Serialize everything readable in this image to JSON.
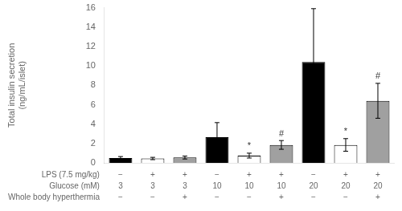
{
  "chart_data": {
    "type": "bar",
    "ylabel": "Total insulin secretion\n(ng/mL/islet)",
    "categories": [
      [
        "−",
        "3",
        "−"
      ],
      [
        "+",
        "3",
        "−"
      ],
      [
        "+",
        "3",
        "+"
      ],
      [
        "−",
        "10",
        "−"
      ],
      [
        "+",
        "10",
        "−"
      ],
      [
        "+",
        "10",
        "+"
      ],
      [
        "−",
        "20",
        "−"
      ],
      [
        "+",
        "20",
        "−"
      ],
      [
        "+",
        "20",
        "+"
      ]
    ],
    "category_rows": [
      "LPS (7.5 mg/kg)",
      "Glucose (mM)",
      "Whole body hyperthermia"
    ],
    "values": [
      0.5,
      0.45,
      0.55,
      2.65,
      0.75,
      1.85,
      10.4,
      1.85,
      6.4
    ],
    "errors": [
      0.15,
      0.12,
      0.15,
      1.5,
      0.25,
      0.45,
      5.5,
      0.65,
      1.8
    ],
    "colors": [
      "#000000",
      "#ffffff",
      "#a0a0a0",
      "#000000",
      "#ffffff",
      "#a0a0a0",
      "#000000",
      "#ffffff",
      "#a0a0a0"
    ],
    "annotations": [
      null,
      null,
      null,
      null,
      "*",
      "#",
      null,
      "*",
      "#"
    ],
    "ylim": [
      0,
      16
    ],
    "yticks": [
      0,
      2,
      4,
      6,
      8,
      10,
      12,
      14,
      16
    ],
    "grid": false,
    "tick_labels": "y"
  }
}
